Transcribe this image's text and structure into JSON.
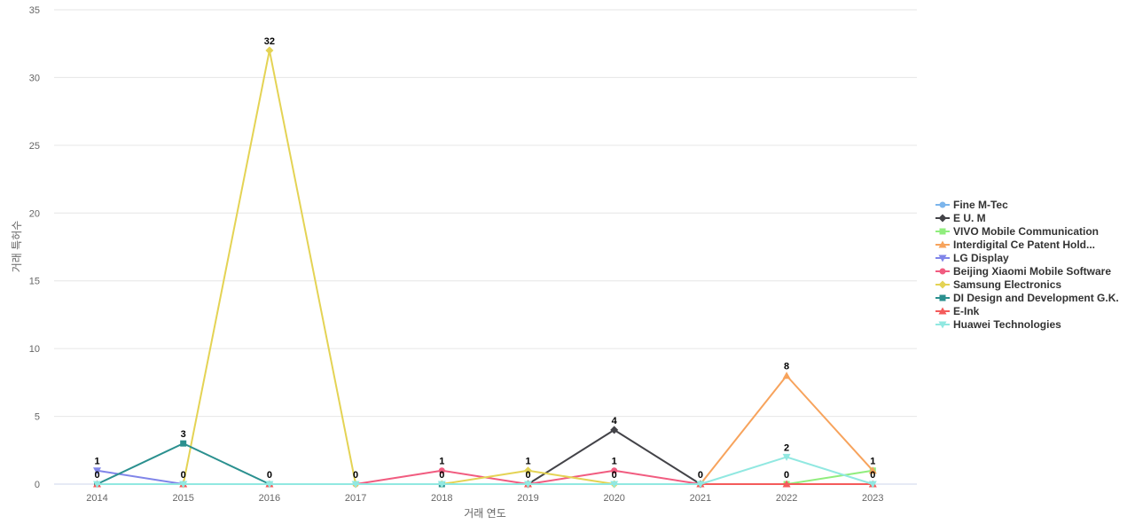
{
  "chart_data": {
    "type": "line",
    "title": "",
    "xlabel": "거래 연도",
    "ylabel": "거래 특허수",
    "ylim": [
      0,
      35
    ],
    "yticks": [
      0,
      5,
      10,
      15,
      20,
      25,
      30,
      35
    ],
    "grid": true,
    "legend_position": "right",
    "categories": [
      "2014",
      "2015",
      "2016",
      "2017",
      "2018",
      "2019",
      "2020",
      "2021",
      "2022",
      "2023"
    ],
    "series": [
      {
        "name": "Fine M-Tec",
        "color": "#7cb5ec",
        "marker": "circle",
        "values": [
          0,
          null,
          null,
          null,
          null,
          null,
          null,
          null,
          null,
          null
        ]
      },
      {
        "name": "E U. M",
        "color": "#434348",
        "marker": "diamond",
        "values": [
          null,
          null,
          null,
          null,
          null,
          0,
          4,
          0,
          null,
          null
        ]
      },
      {
        "name": "VIVO Mobile Communication",
        "color": "#90ed7d",
        "marker": "square",
        "values": [
          null,
          null,
          null,
          null,
          null,
          null,
          null,
          null,
          0,
          1
        ]
      },
      {
        "name": "Interdigital Ce Patent Hold...",
        "color": "#f7a35c",
        "marker": "triangle",
        "values": [
          null,
          null,
          null,
          null,
          null,
          null,
          null,
          0,
          8,
          1
        ]
      },
      {
        "name": "LG Display",
        "color": "#8085e9",
        "marker": "triangle-down",
        "values": [
          1,
          0,
          null,
          null,
          null,
          null,
          null,
          null,
          null,
          null
        ]
      },
      {
        "name": "Beijing Xiaomi Mobile Software",
        "color": "#f15c80",
        "marker": "circle",
        "values": [
          null,
          null,
          null,
          0,
          1,
          0,
          1,
          0,
          null,
          null
        ]
      },
      {
        "name": "Samsung Electronics",
        "color": "#e4d354",
        "marker": "diamond",
        "values": [
          null,
          0,
          32,
          0,
          0,
          1,
          0,
          null,
          null,
          null
        ]
      },
      {
        "name": "DI Design and Development G.K.",
        "color": "#2b908f",
        "marker": "square",
        "values": [
          0,
          3,
          0,
          null,
          0,
          null,
          null,
          null,
          null,
          null
        ]
      },
      {
        "name": "E-Ink",
        "color": "#f45b5b",
        "marker": "triangle",
        "values": [
          0,
          0,
          0,
          null,
          null,
          0,
          null,
          0,
          0,
          0
        ]
      },
      {
        "name": "Huawei Technologies",
        "color": "#91e8e1",
        "marker": "triangle-down",
        "values": [
          0,
          0,
          0,
          0,
          0,
          0,
          0,
          0,
          2,
          0
        ]
      }
    ],
    "data_labels": [
      {
        "x": "2014",
        "y": 1,
        "text": "1"
      },
      {
        "x": "2014",
        "y": 0,
        "text": "0"
      },
      {
        "x": "2015",
        "y": 3,
        "text": "3"
      },
      {
        "x": "2015",
        "y": 0,
        "text": "0"
      },
      {
        "x": "2016",
        "y": 32,
        "text": "32"
      },
      {
        "x": "2016",
        "y": 0,
        "text": "0"
      },
      {
        "x": "2017",
        "y": 0,
        "text": "0"
      },
      {
        "x": "2018",
        "y": 1,
        "text": "1"
      },
      {
        "x": "2018",
        "y": 0,
        "text": "0"
      },
      {
        "x": "2019",
        "y": 1,
        "text": "1"
      },
      {
        "x": "2019",
        "y": 0,
        "text": "0"
      },
      {
        "x": "2020",
        "y": 4,
        "text": "4"
      },
      {
        "x": "2020",
        "y": 1,
        "text": "1"
      },
      {
        "x": "2020",
        "y": 0,
        "text": "0"
      },
      {
        "x": "2021",
        "y": 0,
        "text": "0"
      },
      {
        "x": "2022",
        "y": 8,
        "text": "8"
      },
      {
        "x": "2022",
        "y": 2,
        "text": "2"
      },
      {
        "x": "2022",
        "y": 0,
        "text": "0"
      },
      {
        "x": "2023",
        "y": 1,
        "text": "1"
      },
      {
        "x": "2023",
        "y": 0,
        "text": "0"
      }
    ]
  }
}
